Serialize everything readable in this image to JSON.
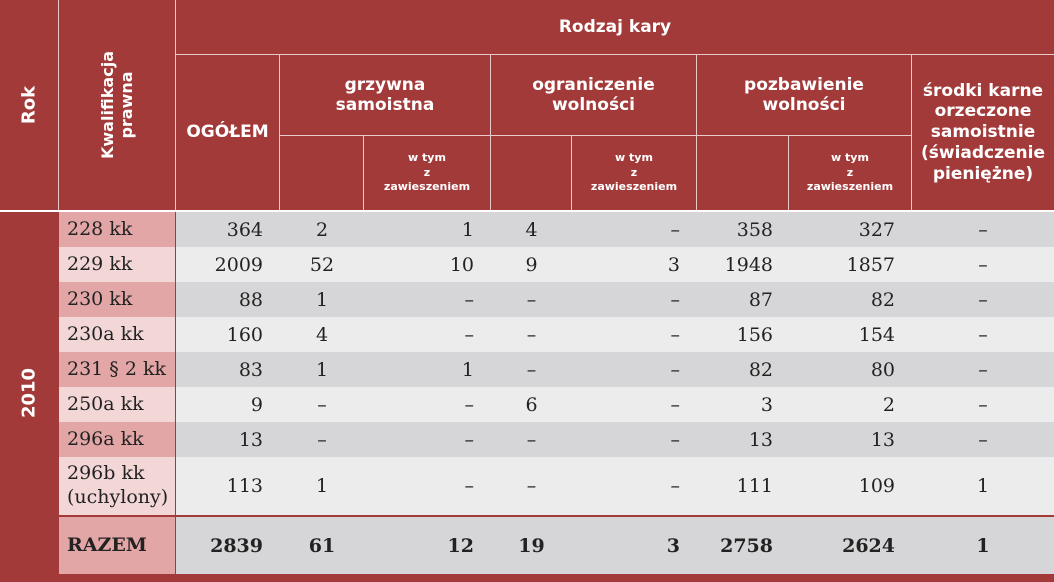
{
  "header": {
    "rok": "Rok",
    "kwalifikacja_line1": "Kwalifikacja",
    "kwalifikacja_line2": "prawna",
    "rodzaj_kary": "Rodzaj kary",
    "ogolem": "OGÓŁEM",
    "grzywna_line1": "grzywna",
    "grzywna_line2": "samoistna",
    "ograniczenie_line1": "ograniczenie",
    "ograniczenie_line2": "wolności",
    "pozbawienie_line1": "pozbawienie",
    "pozbawienie_line2": "wolności",
    "srodki_line1": "środki karne",
    "srodki_line2": "orzeczone",
    "srodki_line3": "samoistnie",
    "srodki_line4": "(świadczenie",
    "srodki_line5": "pieniężne)",
    "wtym_line1": "w tym",
    "wtym_line2": "z",
    "wtym_line3": "zawieszeniem"
  },
  "year": "2010",
  "rows": [
    {
      "label": "228 kk",
      "label2": "",
      "ogolem": "364",
      "grz": "2",
      "grz_z": "1",
      "ogr": "4",
      "ogr_z": "–",
      "poz": "358",
      "poz_z": "327",
      "srodki": "–"
    },
    {
      "label": "229 kk",
      "label2": "",
      "ogolem": "2009",
      "grz": "52",
      "grz_z": "10",
      "ogr": "9",
      "ogr_z": "3",
      "poz": "1948",
      "poz_z": "1857",
      "srodki": "–"
    },
    {
      "label": "230 kk",
      "label2": "",
      "ogolem": "88",
      "grz": "1",
      "grz_z": "–",
      "ogr": "–",
      "ogr_z": "–",
      "poz": "87",
      "poz_z": "82",
      "srodki": "–"
    },
    {
      "label": "230a kk",
      "label2": "",
      "ogolem": "160",
      "grz": "4",
      "grz_z": "–",
      "ogr": "–",
      "ogr_z": "–",
      "poz": "156",
      "poz_z": "154",
      "srodki": "–"
    },
    {
      "label": "231 § 2 kk",
      "label2": "",
      "ogolem": "83",
      "grz": "1",
      "grz_z": "1",
      "ogr": "–",
      "ogr_z": "–",
      "poz": "82",
      "poz_z": "80",
      "srodki": "–"
    },
    {
      "label": "250a kk",
      "label2": "",
      "ogolem": "9",
      "grz": "–",
      "grz_z": "–",
      "ogr": "6",
      "ogr_z": "–",
      "poz": "3",
      "poz_z": "2",
      "srodki": "–"
    },
    {
      "label": "296a kk",
      "label2": "",
      "ogolem": "13",
      "grz": "–",
      "grz_z": "–",
      "ogr": "–",
      "ogr_z": "–",
      "poz": "13",
      "poz_z": "13",
      "srodki": "–"
    },
    {
      "label": "296b kk",
      "label2": "(uchylony)",
      "ogolem": "113",
      "grz": "1",
      "grz_z": "–",
      "ogr": "–",
      "ogr_z": "–",
      "poz": "111",
      "poz_z": "109",
      "srodki": "1"
    }
  ],
  "total": {
    "label": "RAZEM",
    "ogolem": "2839",
    "grz": "61",
    "grz_z": "12",
    "ogr": "19",
    "ogr_z": "3",
    "poz": "2758",
    "poz_z": "2624",
    "srodki": "1"
  },
  "colors": {
    "header_red": "#a23a3a",
    "row_gray": "#d6d6d8",
    "row_light": "#ececec",
    "label_pink_dark": "#e3a6a6",
    "label_pink_light": "#f3d7d7"
  }
}
